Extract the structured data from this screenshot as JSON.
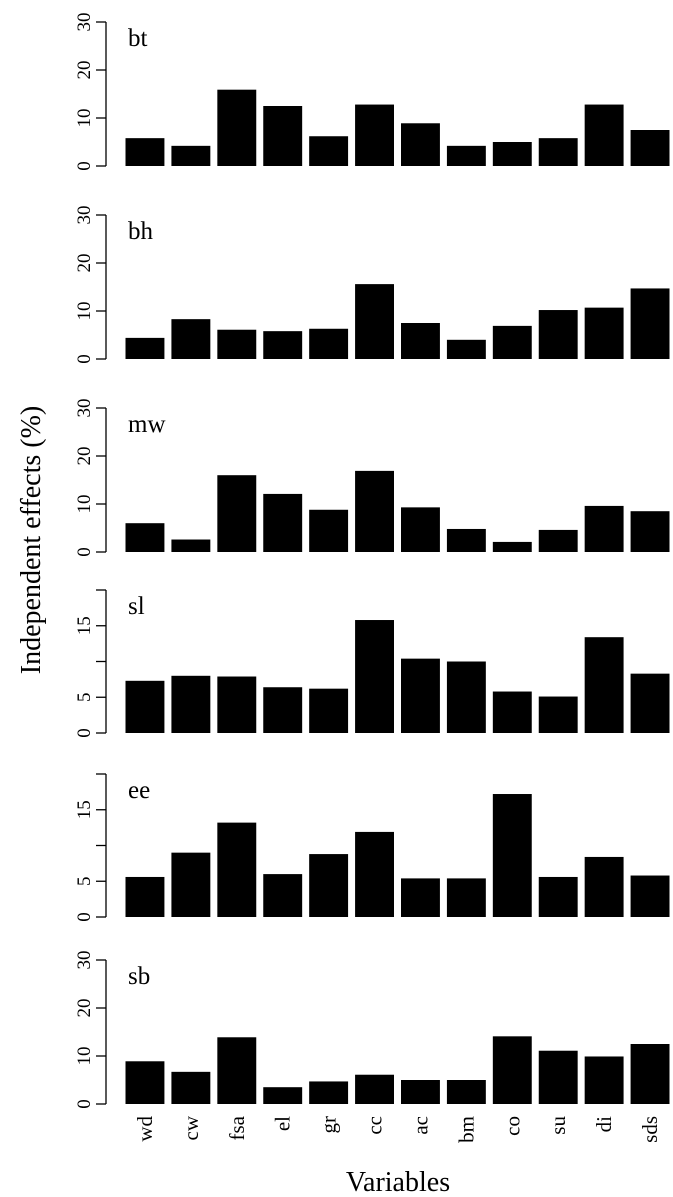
{
  "chart_data": {
    "type": "bar",
    "ylabel": "Independent effects (%)",
    "xlabel": "Variables",
    "categories": [
      "wd",
      "cw",
      "fsa",
      "el",
      "gr",
      "cc",
      "ac",
      "bm",
      "co",
      "su",
      "di",
      "sds"
    ],
    "bar_color": "#000000",
    "panels": [
      {
        "label": "bt",
        "ylim": [
          0,
          30
        ],
        "yticks": [
          "0",
          "10",
          "20",
          "30"
        ],
        "tick_values": [
          0,
          10,
          20,
          30
        ],
        "values": [
          5.8,
          4.2,
          15.9,
          12.5,
          6.2,
          12.8,
          8.9,
          4.2,
          5.0,
          5.8,
          12.8,
          7.5
        ]
      },
      {
        "label": "bh",
        "ylim": [
          0,
          30
        ],
        "yticks": [
          "0",
          "10",
          "20",
          "30"
        ],
        "tick_values": [
          0,
          10,
          20,
          30
        ],
        "values": [
          4.4,
          8.3,
          6.1,
          5.8,
          6.3,
          15.6,
          7.5,
          4.0,
          6.9,
          10.2,
          10.7,
          14.7
        ]
      },
      {
        "label": "mw",
        "ylim": [
          0,
          30
        ],
        "yticks": [
          "0",
          "10",
          "20",
          "30"
        ],
        "tick_values": [
          0,
          10,
          20,
          30
        ],
        "values": [
          6.0,
          2.6,
          16.0,
          12.1,
          8.8,
          16.9,
          9.3,
          4.8,
          2.1,
          4.6,
          9.6,
          8.5
        ]
      },
      {
        "label": "sl",
        "ylim": [
          0,
          20
        ],
        "yticks": [
          "0",
          "5",
          "15"
        ],
        "tick_values": [
          0,
          5,
          15
        ],
        "values": [
          7.3,
          8.0,
          7.9,
          6.4,
          6.2,
          15.8,
          10.4,
          10.0,
          5.8,
          5.1,
          13.4,
          8.3
        ]
      },
      {
        "label": "ee",
        "ylim": [
          0,
          20
        ],
        "yticks": [
          "0",
          "5",
          "15"
        ],
        "tick_values": [
          0,
          5,
          15
        ],
        "values": [
          5.6,
          9.0,
          13.2,
          6.0,
          8.8,
          11.9,
          5.4,
          5.4,
          17.2,
          5.6,
          8.4,
          5.8
        ]
      },
      {
        "label": "sb",
        "ylim": [
          0,
          30
        ],
        "yticks": [
          "0",
          "10",
          "20",
          "30"
        ],
        "tick_values": [
          0,
          10,
          20,
          30
        ],
        "values": [
          8.9,
          6.7,
          13.9,
          3.5,
          4.7,
          6.1,
          5.0,
          5.0,
          14.1,
          11.1,
          9.9,
          12.5
        ]
      }
    ]
  }
}
